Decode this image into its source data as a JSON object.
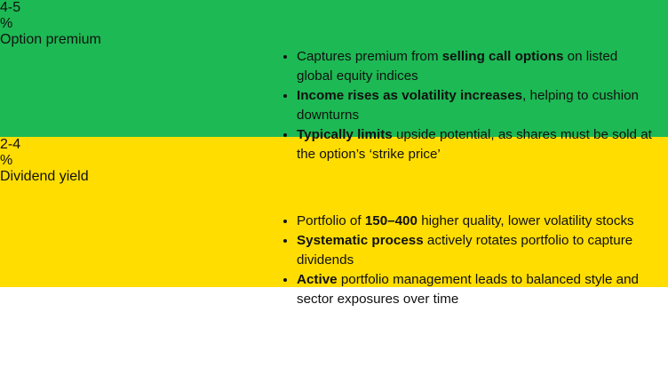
{
  "cards": [
    {
      "number": "4-5",
      "unit": "%",
      "label": "Option premium",
      "color": "#1db954",
      "bullets": [
        [
          {
            "text": "Captures premium from "
          },
          {
            "text": "selling call options",
            "bold": true
          },
          {
            "text": " on listed global equity indices"
          }
        ],
        [
          {
            "text": "Income rises as volatility increases",
            "bold": true
          },
          {
            "text": ", helping to cushion downturns"
          }
        ],
        [
          {
            "text": "Typically limits",
            "bold": true
          },
          {
            "text": " upside potential, as shares must be sold at the option’s ‘strike price’"
          }
        ]
      ]
    },
    {
      "number": "2-4",
      "unit": "%",
      "label": "Dividend yield",
      "color": "#ffdd00",
      "bullets": [
        [
          {
            "text": "Portfolio of "
          },
          {
            "text": "150–400",
            "bold": true
          },
          {
            "text": " higher quality, lower volatility stocks"
          }
        ],
        [
          {
            "text": "Systematic process",
            "bold": true
          },
          {
            "text": " actively rotates portfolio to capture dividends"
          }
        ],
        [
          {
            "text": "Active",
            "bold": true
          },
          {
            "text": " portfolio management leads to balanced style and sector exposures over time"
          }
        ]
      ]
    }
  ]
}
